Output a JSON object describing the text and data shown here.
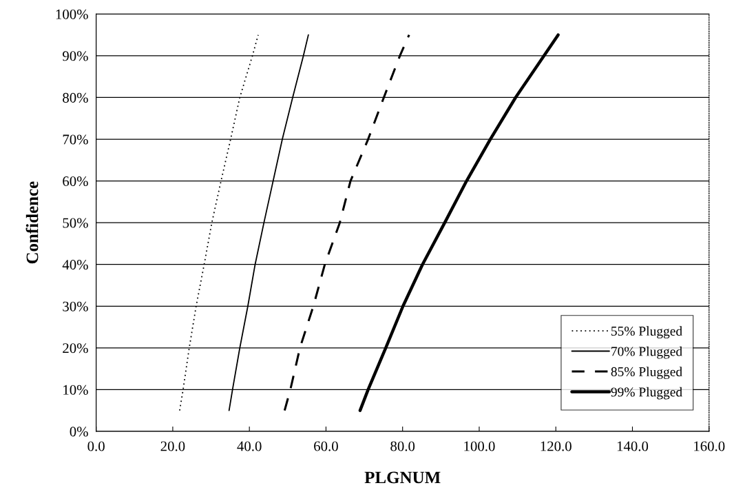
{
  "chart_data": {
    "type": "line",
    "xlabel": "PLGNUM",
    "ylabel": "Confidence",
    "xlim": [
      0,
      160
    ],
    "ylim": [
      0,
      100
    ],
    "xticks": [
      {
        "value": 0,
        "label": "0.0"
      },
      {
        "value": 20,
        "label": "20.0"
      },
      {
        "value": 40,
        "label": "40.0"
      },
      {
        "value": 60,
        "label": "60.0"
      },
      {
        "value": 80,
        "label": "80.0"
      },
      {
        "value": 100,
        "label": "100.0"
      },
      {
        "value": 120,
        "label": "120.0"
      },
      {
        "value": 140,
        "label": "140.0"
      },
      {
        "value": 160,
        "label": "160.0"
      }
    ],
    "yticks": [
      {
        "value": 0,
        "label": "0%"
      },
      {
        "value": 10,
        "label": "10%"
      },
      {
        "value": 20,
        "label": "20%"
      },
      {
        "value": 30,
        "label": "30%"
      },
      {
        "value": 40,
        "label": "40%"
      },
      {
        "value": 50,
        "label": "50%"
      },
      {
        "value": 60,
        "label": "60%"
      },
      {
        "value": 70,
        "label": "70%"
      },
      {
        "value": 80,
        "label": "80%"
      },
      {
        "value": 90,
        "label": "90%"
      },
      {
        "value": 100,
        "label": "100%"
      }
    ],
    "grid": "y",
    "legend": "bottom right",
    "marker": "none",
    "series": [
      {
        "name": "55% Plugged",
        "color": "#000000",
        "line_style": "dotted",
        "x": [
          21.8,
          22.7,
          24.3,
          26.1,
          28.2,
          30.2,
          32.6,
          35.1,
          37.5,
          40.8,
          42.3
        ],
        "values": [
          5,
          10,
          20,
          30,
          40,
          50,
          60,
          70,
          80,
          90,
          95
        ]
      },
      {
        "name": "70% Plugged",
        "color": "#000000",
        "line_style": "solid",
        "x": [
          34.7,
          35.6,
          37.5,
          39.6,
          41.5,
          43.8,
          46.2,
          48.6,
          51.3,
          54.1,
          55.4
        ],
        "values": [
          5,
          10,
          20,
          30,
          40,
          50,
          60,
          70,
          80,
          90,
          95
        ]
      },
      {
        "name": "85% Plugged",
        "color": "#000000",
        "line_style": "dashed",
        "x": [
          49.2,
          50.7,
          53.2,
          56.7,
          59.7,
          63.6,
          66.4,
          71.0,
          75.1,
          79.3,
          81.7
        ],
        "values": [
          5,
          10,
          20,
          30,
          40,
          50,
          60,
          70,
          80,
          90,
          95
        ]
      },
      {
        "name": "99% Plugged",
        "color": "#000000",
        "line_style": "solid",
        "x": [
          68.9,
          71.0,
          75.6,
          80.1,
          85.2,
          91.0,
          96.7,
          102.9,
          109.5,
          116.9,
          120.6
        ],
        "values": [
          5,
          10,
          20,
          30,
          40,
          50,
          60,
          70,
          80,
          90,
          95
        ]
      }
    ]
  }
}
